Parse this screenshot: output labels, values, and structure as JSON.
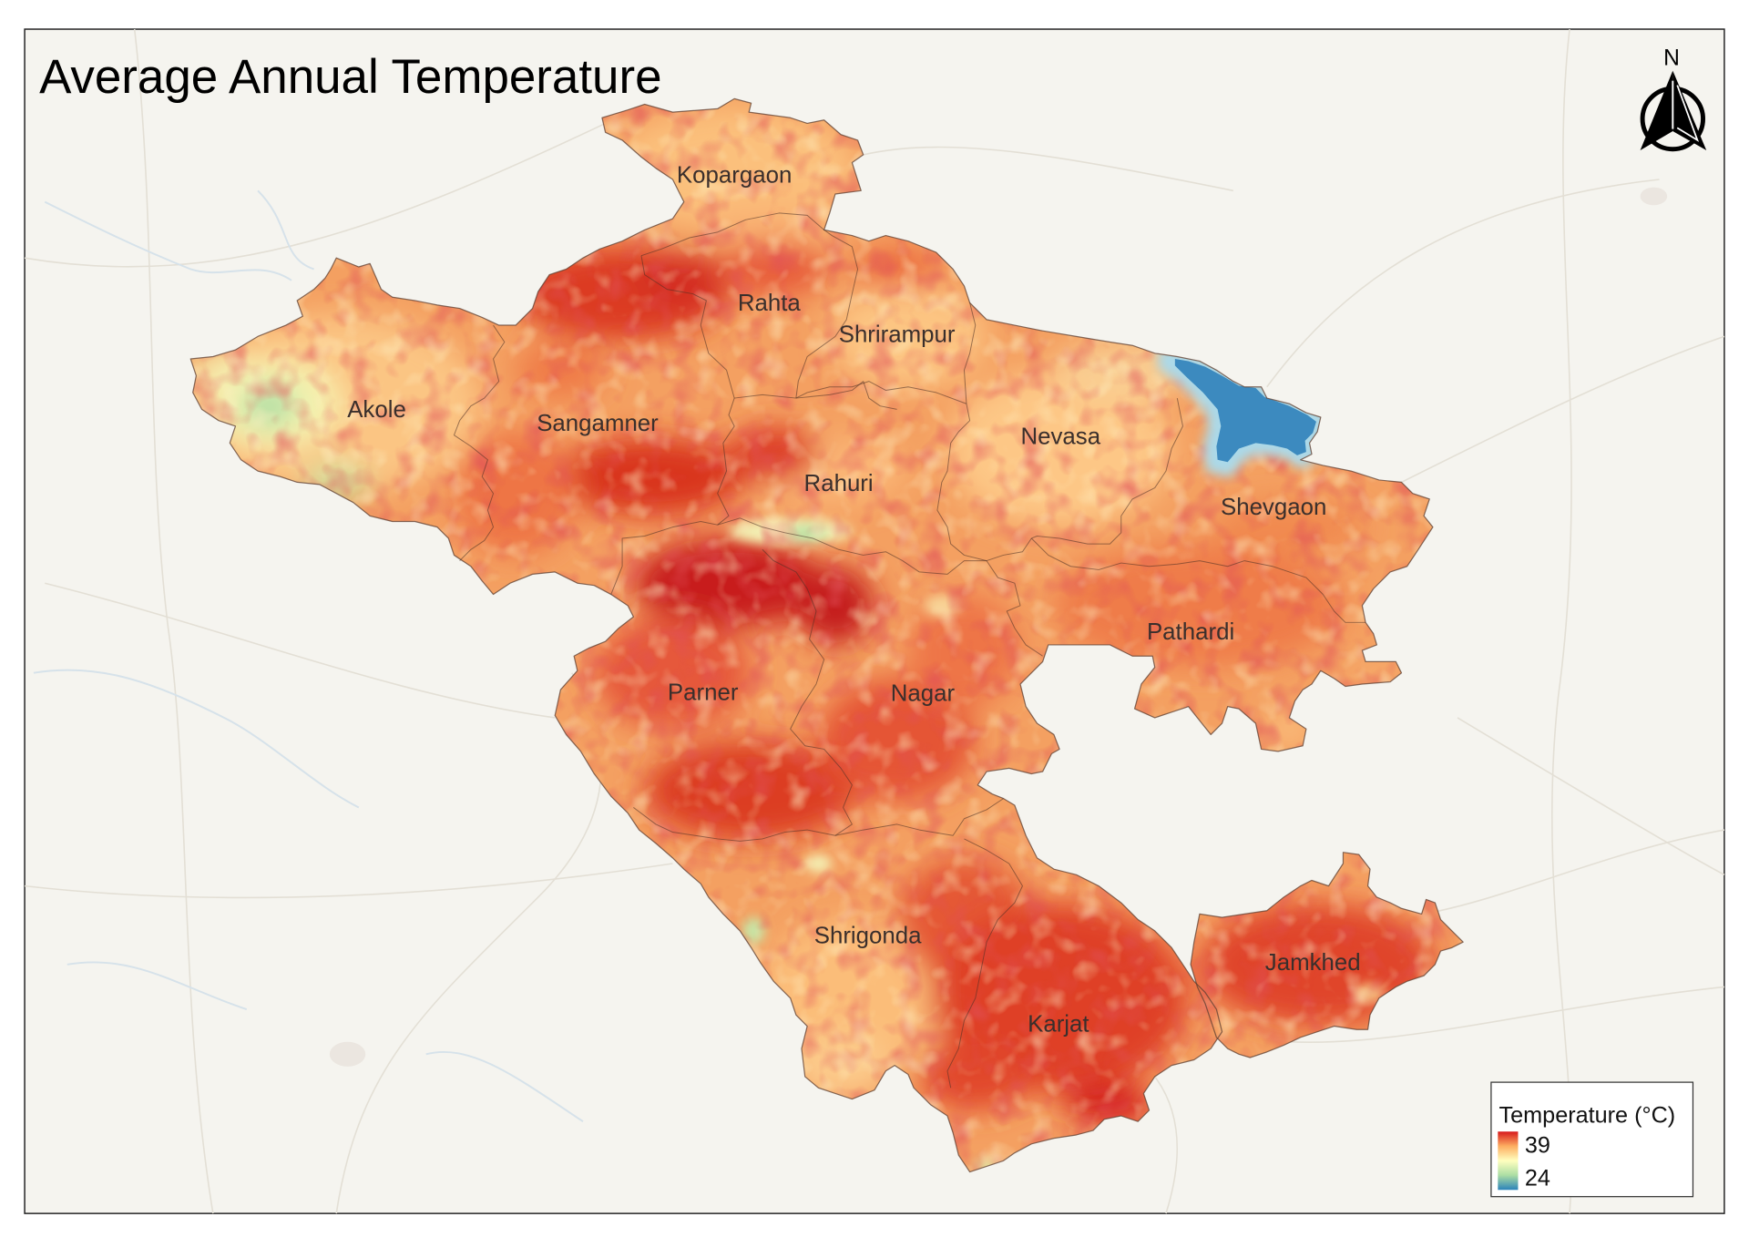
{
  "title": "Average Annual Temperature",
  "north_arrow": {
    "label": "N"
  },
  "talukas": [
    {
      "name": "Kopargaon"
    },
    {
      "name": "Rahta"
    },
    {
      "name": "Shrirampur"
    },
    {
      "name": "Akole"
    },
    {
      "name": "Sangamner"
    },
    {
      "name": "Nevasa"
    },
    {
      "name": "Rahuri"
    },
    {
      "name": "Shevgaon"
    },
    {
      "name": "Pathardi"
    },
    {
      "name": "Parner"
    },
    {
      "name": "Nagar"
    },
    {
      "name": "Shrigonda"
    },
    {
      "name": "Jamkhed"
    },
    {
      "name": "Karjat"
    }
  ],
  "legend": {
    "title": "Temperature (°C)",
    "max_label": "39",
    "min_label": "24",
    "colormap": [
      "#d7191c",
      "#fdae61",
      "#ffffbf",
      "#abdda4",
      "#2b83ba"
    ]
  },
  "colors": {
    "basemap": "#f5f4ef",
    "frame": "#222222",
    "reservoir": "#3c8abf",
    "label_text": "#3a2f2c"
  }
}
